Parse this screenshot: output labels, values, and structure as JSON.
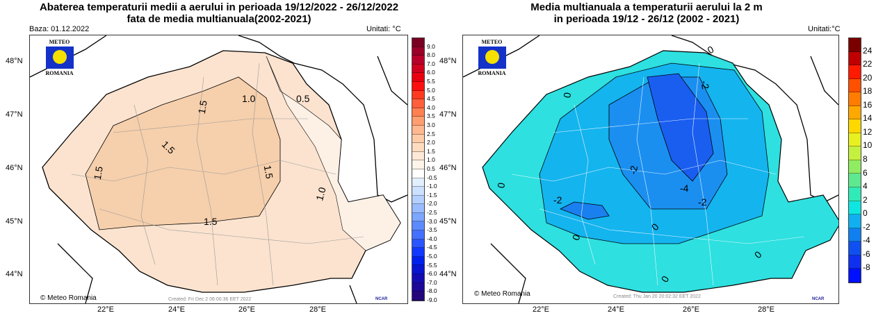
{
  "left": {
    "title_line1": "Abaterea temperaturii medii a aerului in perioada 19/12/2022 - 26/12/2022",
    "title_line2": "fata de media multianuala(2002-2021)",
    "base": "Baza: 01.12.2022",
    "units": "Unitati: °C",
    "logo_top": "METEO",
    "logo_bottom": "ROMANIA",
    "copyright": "© Meteo Romania",
    "created": "Created: Fri Dec  2 06:00:36 EET 2022",
    "ncar": "NCAR",
    "lat_labels": [
      "48°N",
      "47°N",
      "46°N",
      "45°N",
      "44°N"
    ],
    "lon_labels": [
      "22°E",
      "24°E",
      "26°E",
      "28°E"
    ],
    "contour_labels": [
      "1.0",
      "0.5",
      "1.5",
      "1.5",
      "1.5",
      "1.5",
      "1.5",
      "1.0",
      "1.5"
    ],
    "colorbar_labels": [
      "9.0",
      "8.0",
      "7.0",
      "6.0",
      "5.5",
      "5.0",
      "4.5",
      "4.0",
      "3.5",
      "3.0",
      "2.5",
      "2.0",
      "1.5",
      "1.0",
      "0.5",
      "-0.5",
      "-1.0",
      "-1.5",
      "-2.0",
      "-2.5",
      "-3.0",
      "-3.5",
      "-4.0",
      "-4.5",
      "-5.0",
      "-5.5",
      "-6.0",
      "-7.0",
      "-8.0",
      "-9.0"
    ],
    "colorbar_colors": [
      "#7a0022",
      "#9a0028",
      "#b8002a",
      "#d0001e",
      "#e80010",
      "#ff1010",
      "#ff3a20",
      "#ff5f3a",
      "#ff8050",
      "#ff9e70",
      "#ffb890",
      "#ffcca8",
      "#ffdcc0",
      "#ffe9d6",
      "#fff4ea",
      "#ffffff",
      "#e2efff",
      "#cce0ff",
      "#b4d0ff",
      "#98bcff",
      "#7ca6ff",
      "#5c8aff",
      "#4470ff",
      "#2a55ff",
      "#1038ff",
      "#0020f0",
      "#0814d0",
      "#140cb0",
      "#1c0898",
      "#24067c"
    ]
  },
  "right": {
    "title_line1": "Media multianuala a temperaturii aerului la 2 m",
    "title_line2": "in perioada 19/12 - 26/12 (2002 - 2021)",
    "units": "Unitati:°C",
    "logo_top": "METEO",
    "logo_bottom": "ROMANIA",
    "copyright": "© Meteo Romania",
    "created": "Created: Thu Jan 20 20:02:32 EET 2022",
    "ncar": "NCAR",
    "lat_labels": [
      "48°N",
      "47°N",
      "46°N",
      "45°N",
      "44°N"
    ],
    "lon_labels": [
      "22°E",
      "24°E",
      "26°E",
      "28°E"
    ],
    "contour_labels": [
      "0",
      "-2",
      "-4",
      "-2",
      "0",
      "-2",
      "-2",
      "0",
      "0",
      "0",
      "0",
      "0"
    ],
    "colorbar_labels": [
      "24",
      "22",
      "20",
      "18",
      "16",
      "14",
      "12",
      "10",
      "8",
      "6",
      "4",
      "2",
      "0",
      "-2",
      "-4",
      "-6",
      "-8"
    ],
    "colorbar_colors": [
      "#7a0000",
      "#c00000",
      "#ff1a00",
      "#ff5000",
      "#ff7c00",
      "#ffa800",
      "#ffd800",
      "#e8f020",
      "#c4f040",
      "#90ec60",
      "#5ee890",
      "#30eab8",
      "#10e6e0",
      "#10b0f0",
      "#1080f0",
      "#1050f0",
      "#1030f0",
      "#0010ff"
    ]
  }
}
